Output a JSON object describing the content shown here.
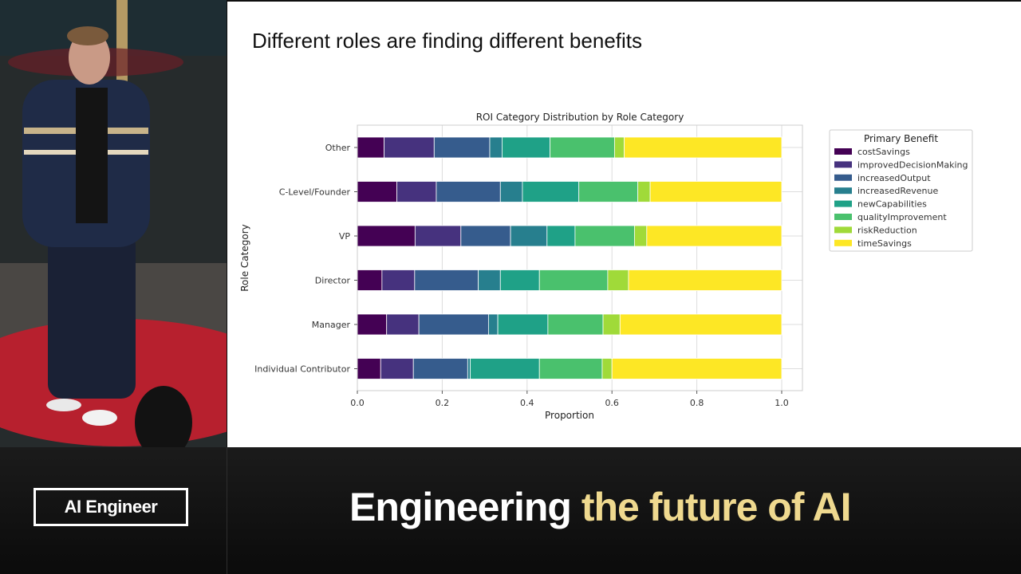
{
  "slide": {
    "title": "Different roles are finding different benefits"
  },
  "branding": {
    "logo_text": "AI Engineer",
    "tagline_part1": "Engineering",
    "tagline_part2": "the future of AI",
    "tagline_accent_color": "#efd98f"
  },
  "chart_data": {
    "type": "bar",
    "orientation": "horizontal",
    "stacked": true,
    "title": "ROI Category Distribution by Role Category",
    "xlabel": "Proportion",
    "ylabel": "Role Category",
    "xlim": [
      0,
      1.0
    ],
    "xticks": [
      "0.0",
      "0.2",
      "0.4",
      "0.6",
      "0.8",
      "1.0"
    ],
    "grid": true,
    "legend_title": "Primary Benefit",
    "legend_position": "upper-right-outside",
    "categories": [
      "Other",
      "C-Level/Founder",
      "VP",
      "Director",
      "Manager",
      "Individual Contributor"
    ],
    "series": [
      {
        "name": "costSavings",
        "color": "#440154",
        "values": [
          0.063,
          0.093,
          0.136,
          0.058,
          0.069,
          0.055
        ]
      },
      {
        "name": "improvedDecisionMaking",
        "color": "#46327e",
        "values": [
          0.118,
          0.093,
          0.108,
          0.077,
          0.076,
          0.077
        ]
      },
      {
        "name": "increasedOutput",
        "color": "#365c8d",
        "values": [
          0.131,
          0.151,
          0.117,
          0.15,
          0.164,
          0.128
        ]
      },
      {
        "name": "increasedRevenue",
        "color": "#277f8e",
        "values": [
          0.029,
          0.052,
          0.086,
          0.052,
          0.022,
          0.006
        ]
      },
      {
        "name": "newCapabilities",
        "color": "#1fa187",
        "values": [
          0.113,
          0.133,
          0.066,
          0.092,
          0.118,
          0.163
        ]
      },
      {
        "name": "qualityImprovement",
        "color": "#4ac16d",
        "values": [
          0.152,
          0.139,
          0.14,
          0.161,
          0.13,
          0.148
        ]
      },
      {
        "name": "riskReduction",
        "color": "#a0da39",
        "values": [
          0.023,
          0.029,
          0.029,
          0.049,
          0.04,
          0.023
        ]
      },
      {
        "name": "timeSavings",
        "color": "#fde725",
        "values": [
          0.371,
          0.31,
          0.318,
          0.361,
          0.381,
          0.4
        ]
      }
    ]
  }
}
